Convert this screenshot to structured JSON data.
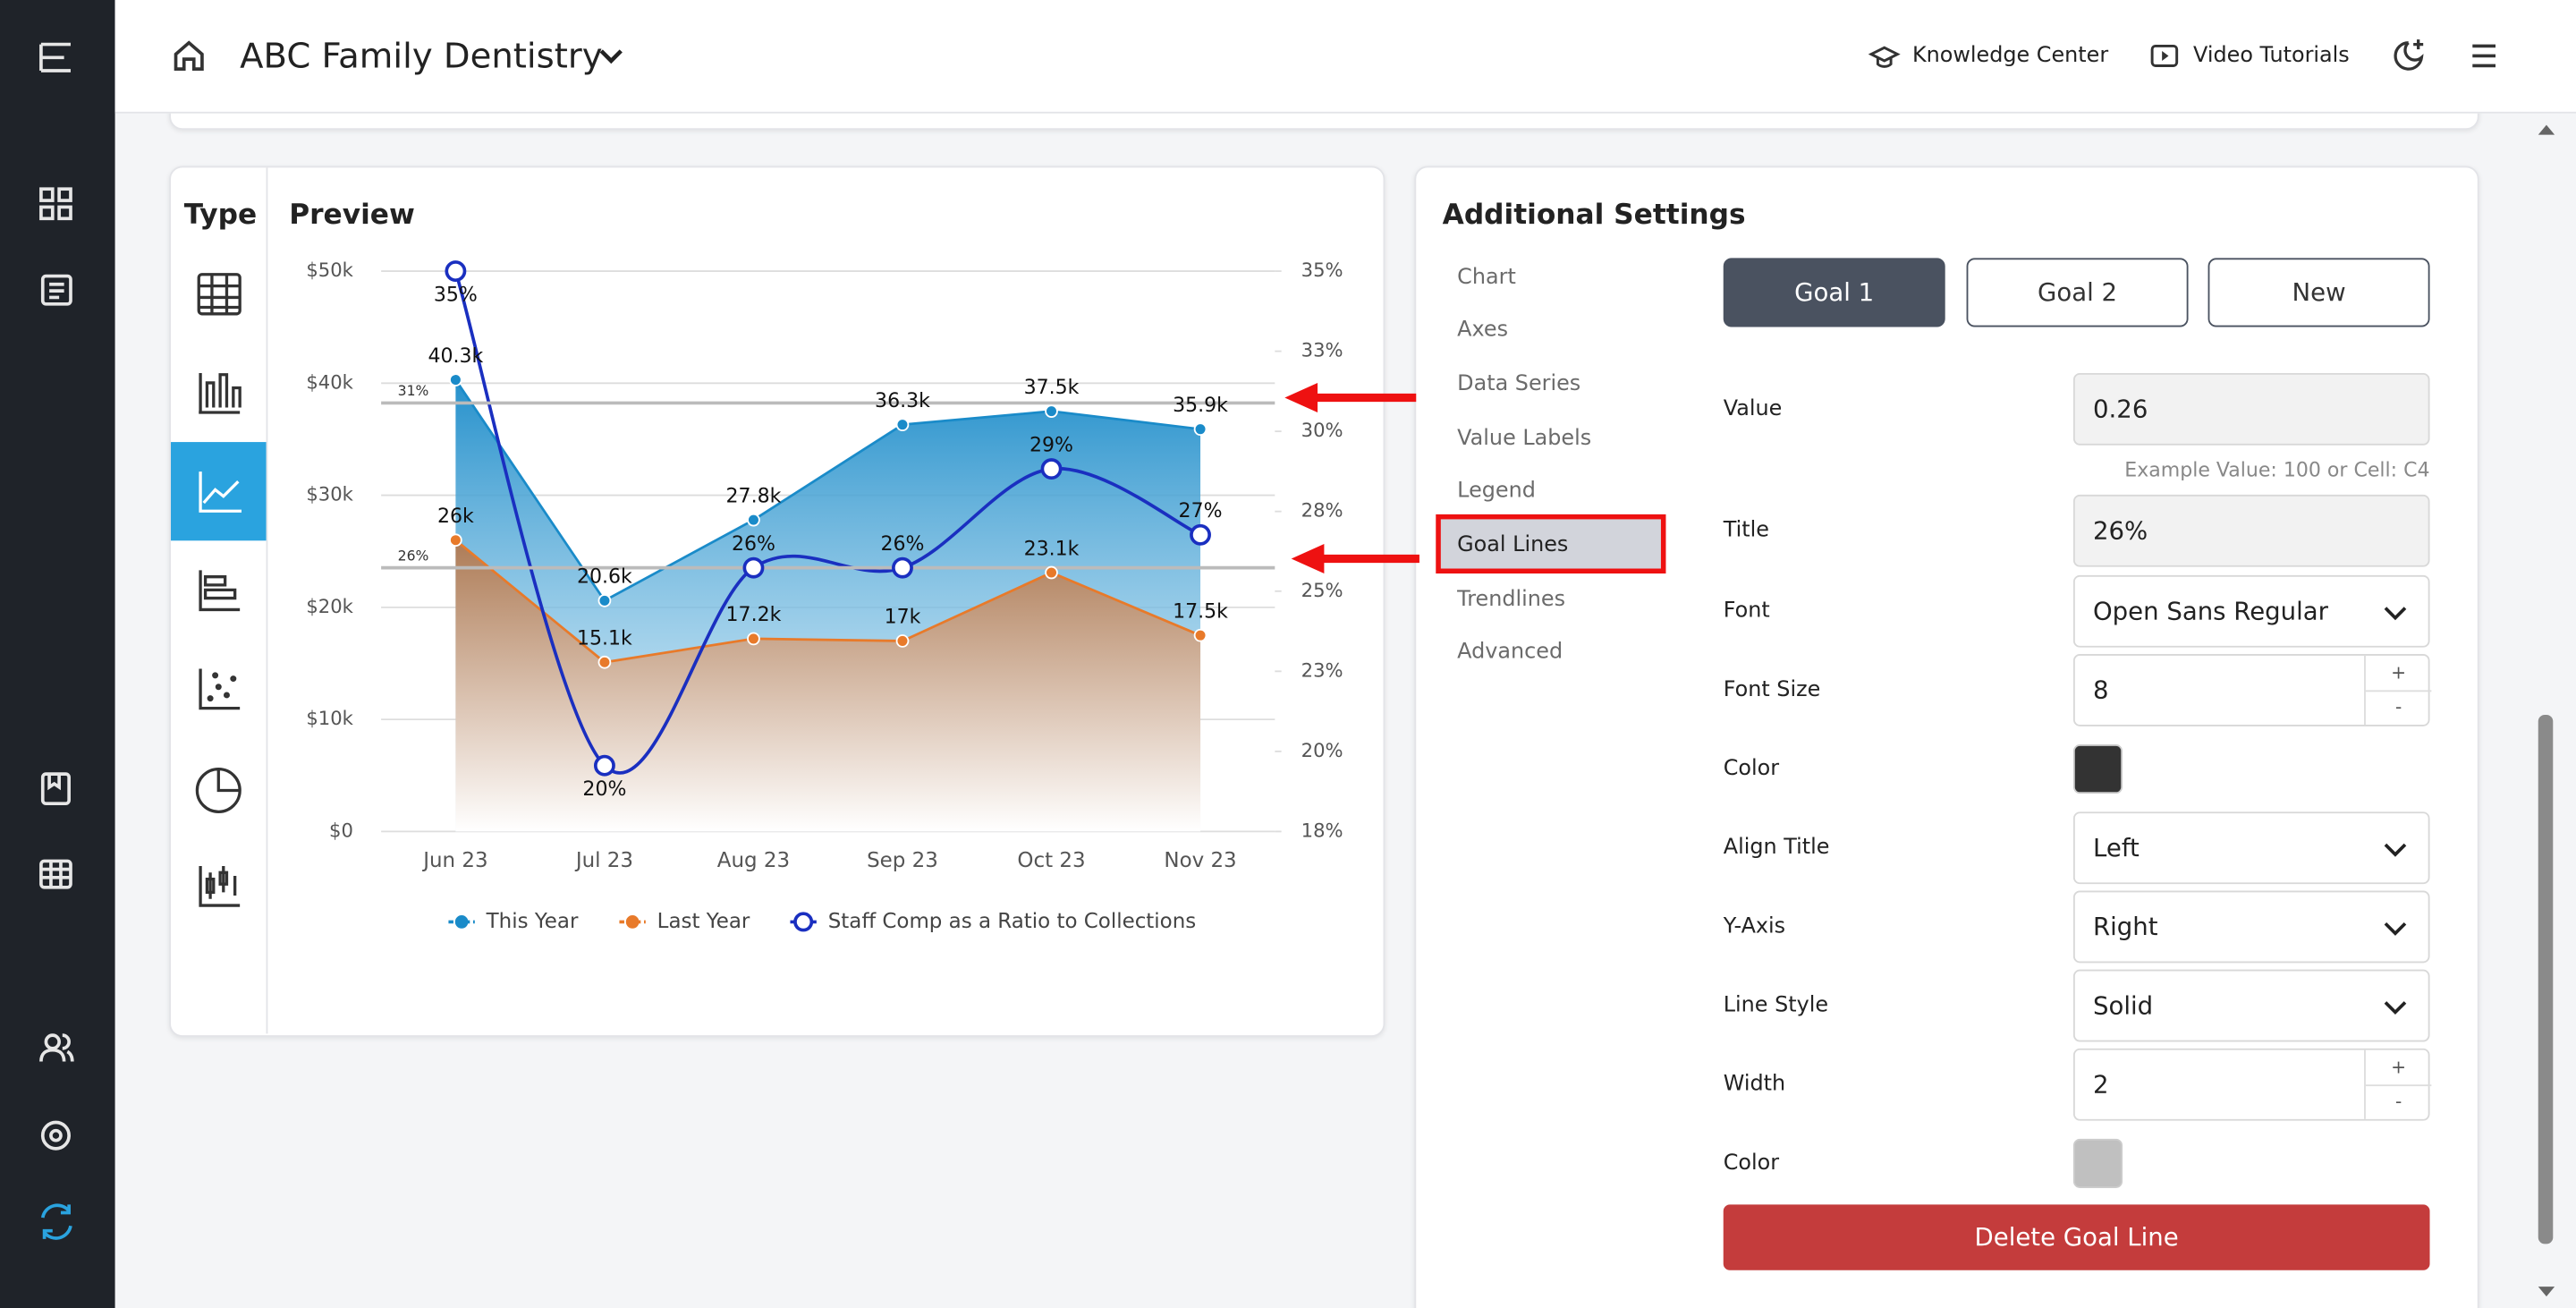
{
  "header": {
    "title": "ABC Family Dentistry",
    "links": [
      "Knowledge Center",
      "Video Tutorials"
    ]
  },
  "type_panel": {
    "title": "Type"
  },
  "preview": {
    "title": "Preview"
  },
  "chart_data": {
    "type": "area",
    "categories": [
      "Jun 23",
      "Jul 23",
      "Aug 23",
      "Sep 23",
      "Oct 23",
      "Nov 23"
    ],
    "series": [
      {
        "name": "This Year",
        "type": "area",
        "color": "#1a8bc9",
        "values": [
          40300,
          20600,
          27800,
          36300,
          37500,
          35900
        ],
        "value_labels": [
          "40.3k",
          "20.6k",
          "27.8k",
          "36.3k",
          "37.5k",
          "35.9k"
        ]
      },
      {
        "name": "Last Year",
        "type": "area",
        "color": "#e87a2a",
        "values": [
          26000,
          15100,
          17200,
          17000,
          23100,
          17500
        ],
        "value_labels": [
          "26k",
          "15.1k",
          "17.2k",
          "17k",
          "23.1k",
          "17.5k"
        ]
      },
      {
        "name": "Staff Comp as a Ratio to Collections",
        "type": "line",
        "axis": "y2",
        "color": "#1a2fc0",
        "values": [
          35,
          20,
          26,
          26,
          29,
          27
        ],
        "value_labels": [
          "35%",
          "20%",
          "26%",
          "26%",
          "29%",
          "27%"
        ]
      }
    ],
    "ylim": [
      0,
      50000
    ],
    "yticks": [
      {
        "value": 0,
        "label": "$0"
      },
      {
        "value": 10000,
        "label": "$10k"
      },
      {
        "value": 20000,
        "label": "$20k"
      },
      {
        "value": 30000,
        "label": "$30k"
      },
      {
        "value": 40000,
        "label": "$40k"
      },
      {
        "value": 50000,
        "label": "$50k"
      }
    ],
    "y2lim": [
      18,
      35
    ],
    "y2ticks": [
      {
        "value": 18,
        "label": "18%"
      },
      {
        "value": 20.43,
        "label": "20%"
      },
      {
        "value": 22.86,
        "label": "23%"
      },
      {
        "value": 25.29,
        "label": "25%"
      },
      {
        "value": 27.71,
        "label": "28%"
      },
      {
        "value": 30.14,
        "label": "30%"
      },
      {
        "value": 32.57,
        "label": "33%"
      },
      {
        "value": 35,
        "label": "35%"
      }
    ],
    "goal_lines": [
      {
        "value": 31,
        "label": "31%",
        "color": "#bbbbbb"
      },
      {
        "value": 26,
        "label": "26%",
        "color": "#bbbbbb"
      }
    ],
    "grid": true,
    "legend": "bottom"
  },
  "settings": {
    "title": "Additional Settings",
    "menu": [
      "Chart",
      "Axes",
      "Data Series",
      "Value Labels",
      "Legend",
      "Goal Lines",
      "Trendlines",
      "Advanced"
    ],
    "selected": 5,
    "tabs": [
      "Goal 1",
      "Goal 2",
      "New"
    ],
    "active_tab": 0,
    "fields": [
      {
        "label": "Value",
        "kind": "text",
        "value": "0.26",
        "hint": "Example Value: 100 or Cell: C4"
      },
      {
        "label": "Title",
        "kind": "text",
        "value": "26%"
      },
      {
        "label": "Font",
        "kind": "select",
        "value": "Open Sans Regular"
      },
      {
        "label": "Font Size",
        "kind": "number",
        "value": "8"
      },
      {
        "label": "Color",
        "kind": "color",
        "color": "#333333"
      },
      {
        "label": "Align Title",
        "kind": "select",
        "value": "Left"
      },
      {
        "label": "Y-Axis",
        "kind": "select",
        "value": "Right"
      },
      {
        "label": "Line Style",
        "kind": "select",
        "value": "Solid"
      },
      {
        "label": "Width",
        "kind": "number",
        "value": "2"
      },
      {
        "label": "Color",
        "kind": "color",
        "color": "#c0c0c0"
      }
    ],
    "stepper": [
      "+",
      "-"
    ],
    "button": "Delete Goal Line"
  }
}
